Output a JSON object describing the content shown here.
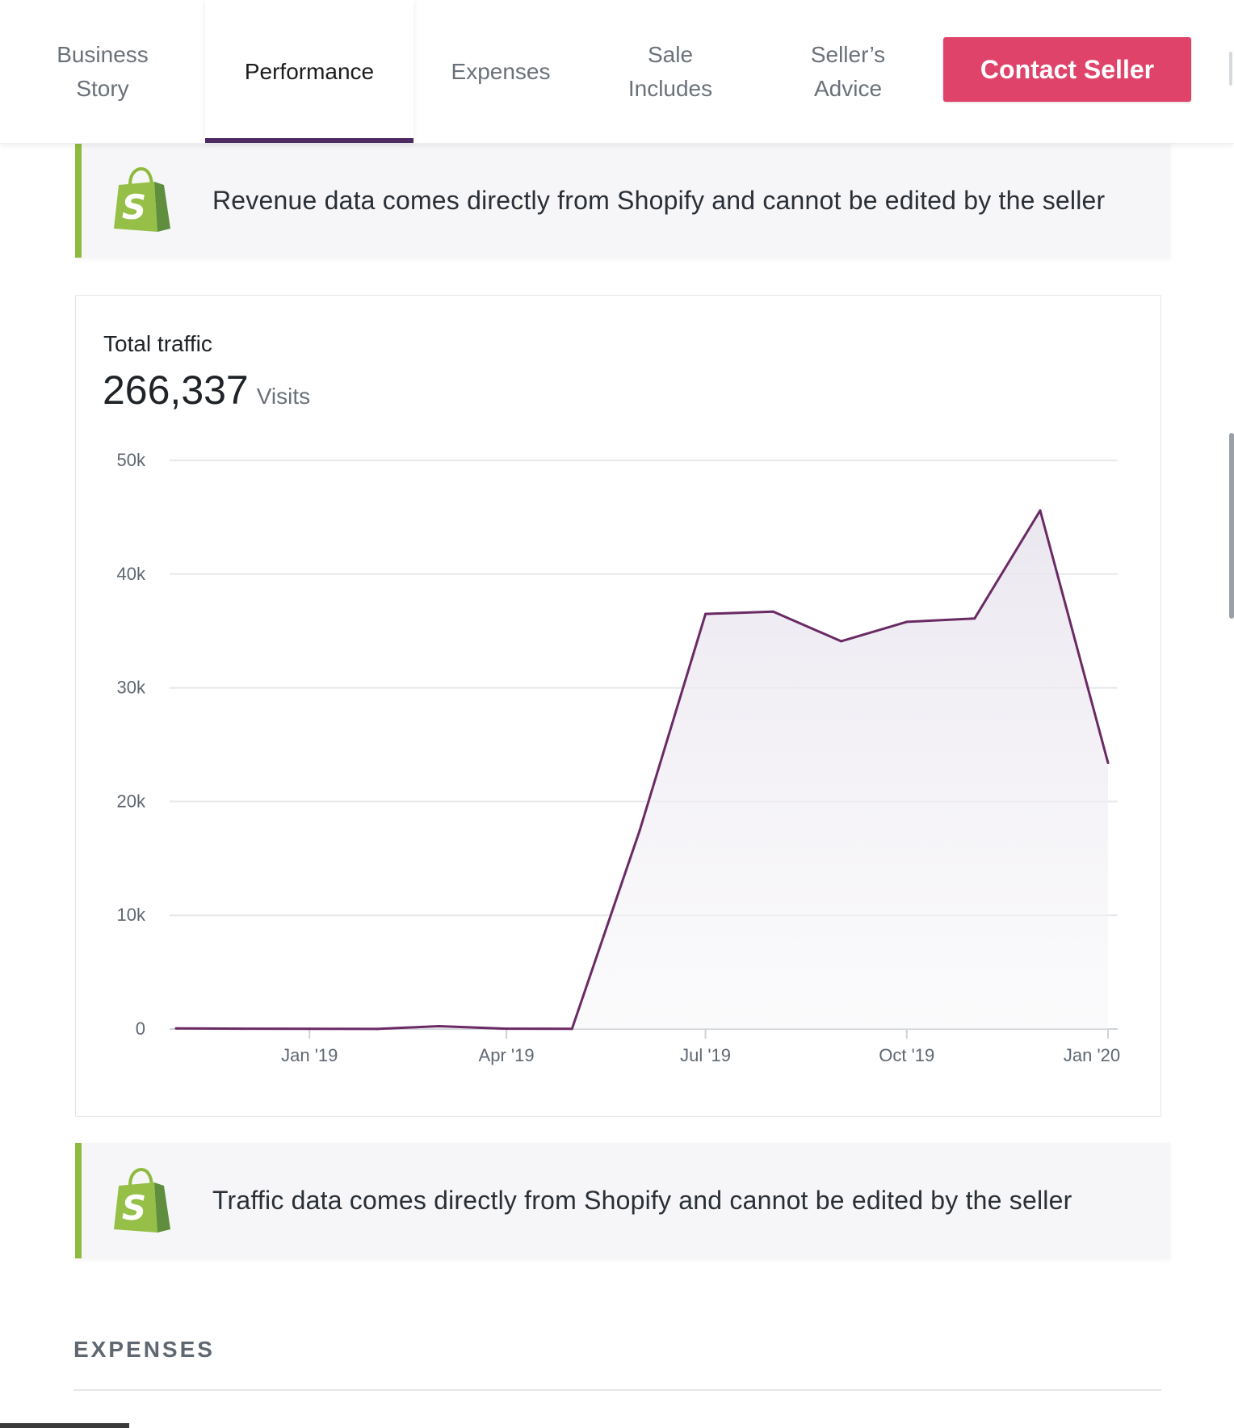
{
  "nav": {
    "tabs": [
      {
        "label": "Business\nStory",
        "active": false
      },
      {
        "label": "Performance",
        "active": true
      },
      {
        "label": "Expenses",
        "active": false
      },
      {
        "label": "Sale\nIncludes",
        "active": false
      },
      {
        "label": "Seller’s\nAdvice",
        "active": false
      }
    ],
    "contact_label": "Contact Seller"
  },
  "colors": {
    "accent": "#e0436a",
    "active_tab_underline": "#4d2a62",
    "notice_border": "#8fba3f",
    "line": "#6a2a64"
  },
  "notices": {
    "revenue": {
      "icon": "shopify-bag-icon",
      "text": "Revenue data comes directly from Shopify and cannot be edited by the seller"
    },
    "traffic": {
      "icon": "shopify-bag-icon",
      "text": "Traffic data comes directly from Shopify and cannot be edited by the seller"
    }
  },
  "traffic": {
    "title": "Total traffic",
    "total": "266,337",
    "unit": "Visits"
  },
  "chart_data": {
    "type": "area",
    "title": "Total traffic",
    "xlabel": "",
    "ylabel": "",
    "ylim": [
      0,
      50000
    ],
    "yticks": [
      0,
      10000,
      20000,
      30000,
      40000,
      50000
    ],
    "ytick_labels": [
      "0",
      "10k",
      "20k",
      "30k",
      "40k",
      "50k"
    ],
    "xticks": [
      "2019-01-01",
      "2019-04-01",
      "2019-07-01",
      "2019-10-01",
      "2020-01-01"
    ],
    "xtick_labels": [
      "Jan '19",
      "Apr '19",
      "Jul '19",
      "Oct '19",
      "Jan '20"
    ],
    "grid": true,
    "series": [
      {
        "x": [
          "2018-11-01",
          "2018-12-01",
          "2019-01-01",
          "2019-02-01",
          "2019-03-01",
          "2019-04-01",
          "2019-05-01",
          "2019-06-01",
          "2019-07-01",
          "2019-08-01",
          "2019-09-01",
          "2019-10-01",
          "2019-11-01",
          "2019-12-01",
          "2020-01-01"
        ],
        "values": [
          50,
          30,
          20,
          10,
          250,
          30,
          20,
          17500,
          36500,
          36700,
          34100,
          35800,
          36100,
          45600,
          23400
        ]
      }
    ]
  },
  "expenses": {
    "heading": "EXPENSES"
  }
}
